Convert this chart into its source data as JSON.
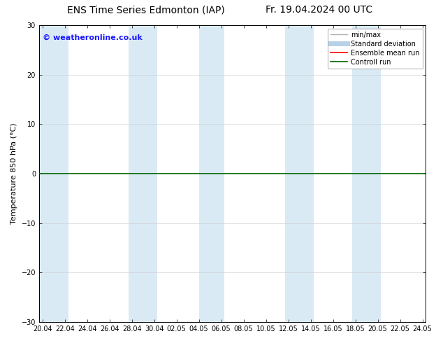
{
  "title_left": "ENS Time Series Edmonton (IAP)",
  "title_right": "Fr. 19.04.2024 00 UTC",
  "watermark": "© weatheronline.co.uk",
  "ylabel": "Temperature 850 hPa (°C)",
  "ylim": [
    -30,
    30
  ],
  "yticks": [
    -30,
    -20,
    -10,
    0,
    10,
    20,
    30
  ],
  "xtick_labels": [
    "20.04",
    "22.04",
    "24.04",
    "26.04",
    "28.04",
    "30.04",
    "02.05",
    "04.05",
    "06.05",
    "08.05",
    "10.05",
    "12.05",
    "14.05",
    "16.05",
    "18.05",
    "20.05",
    "22.05",
    "24.05"
  ],
  "zero_line_color": "#006400",
  "shaded_color": "#daeaf5",
  "background_color": "#ffffff",
  "legend_items": [
    {
      "label": "min/max",
      "color": "#b0b0b0",
      "lw": 1.0
    },
    {
      "label": "Standard deviation",
      "color": "#b8d0e8",
      "lw": 5.0
    },
    {
      "label": "Ensemble mean run",
      "color": "#ff0000",
      "lw": 1.2
    },
    {
      "label": "Controll run",
      "color": "#006400",
      "lw": 1.2
    }
  ],
  "title_fontsize": 10,
  "ylabel_fontsize": 8,
  "tick_fontsize": 7,
  "watermark_fontsize": 8,
  "legend_fontsize": 7
}
